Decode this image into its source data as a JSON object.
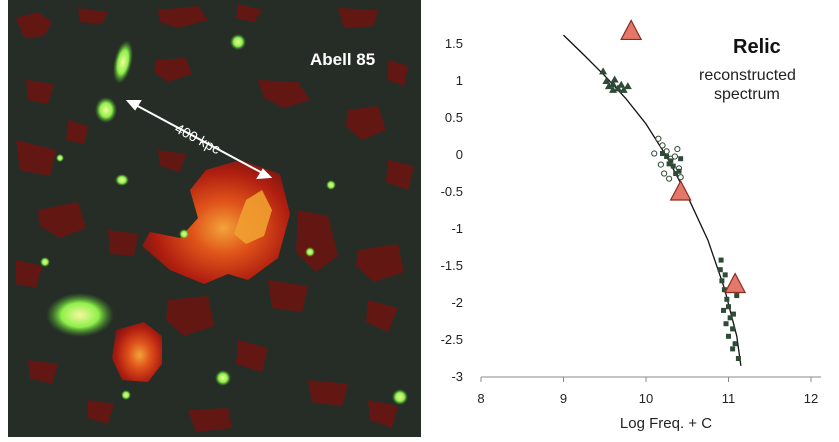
{
  "image_panel": {
    "title": "Abell 85",
    "scale_label": "400 kpc"
  },
  "legend": {
    "title": "Relic",
    "subtitle_line1": "reconstructed",
    "subtitle_line2": "spectrum"
  },
  "colors": {
    "background_dark": "#262d26",
    "radio_dark": "#7a1612",
    "radio_bright": "#d13412",
    "radio_core": "#f0a030",
    "xray_green": "#6ee84a",
    "xray_core": "#e8f070",
    "triangle_fill": "#e3776a",
    "triangle_stroke": "#8a2b20",
    "marker_dark": "#2f4a37"
  },
  "chart_data": {
    "type": "scatter",
    "title": "",
    "xlabel": "Log Freq. + C",
    "ylabel": "",
    "xlim": [
      8,
      12
    ],
    "ylim": [
      -3,
      1.5
    ],
    "x_ticks": [
      "8",
      "9",
      "10",
      "11",
      "12"
    ],
    "y_ticks": [
      "1.5",
      "1",
      "0.5",
      "0",
      "-0.5",
      "-1",
      "-1.5",
      "-2",
      "-2.5",
      "-3"
    ],
    "series": [
      {
        "marker": "triangle-small",
        "points": [
          [
            9.48,
            1.13
          ],
          [
            9.52,
            1.0
          ],
          [
            9.55,
            0.93
          ],
          [
            9.6,
            0.96
          ],
          [
            9.62,
            1.02
          ],
          [
            9.66,
            0.9
          ],
          [
            9.7,
            0.95
          ],
          [
            9.73,
            0.88
          ],
          [
            9.78,
            0.93
          ],
          [
            9.6,
            0.88
          ]
        ]
      },
      {
        "marker": "circle-open",
        "points": [
          [
            10.15,
            0.22
          ],
          [
            10.2,
            0.13
          ],
          [
            10.1,
            0.02
          ],
          [
            10.25,
            0.05
          ],
          [
            10.3,
            -0.05
          ],
          [
            10.18,
            -0.13
          ],
          [
            10.35,
            -0.02
          ],
          [
            10.4,
            -0.18
          ],
          [
            10.42,
            -0.3
          ],
          [
            10.28,
            -0.32
          ],
          [
            10.38,
            0.08
          ],
          [
            10.22,
            -0.25
          ]
        ]
      },
      {
        "marker": "square-small",
        "points": [
          [
            10.2,
            0.02
          ],
          [
            10.25,
            -0.02
          ],
          [
            10.3,
            -0.08
          ],
          [
            10.28,
            -0.12
          ],
          [
            10.33,
            -0.15
          ],
          [
            10.4,
            -0.22
          ],
          [
            10.36,
            -0.25
          ],
          [
            10.42,
            -0.05
          ],
          [
            10.9,
            -1.55
          ],
          [
            10.92,
            -1.7
          ],
          [
            10.95,
            -1.82
          ],
          [
            10.98,
            -1.95
          ],
          [
            11.0,
            -2.05
          ],
          [
            10.94,
            -2.1
          ],
          [
            11.02,
            -2.2
          ],
          [
            10.97,
            -2.28
          ],
          [
            11.05,
            -2.35
          ],
          [
            11.0,
            -2.45
          ],
          [
            11.08,
            -2.55
          ],
          [
            11.05,
            -2.62
          ],
          [
            11.1,
            -1.9
          ],
          [
            10.96,
            -1.62
          ],
          [
            11.12,
            -2.75
          ],
          [
            11.06,
            -2.15
          ],
          [
            10.91,
            -1.42
          ]
        ]
      },
      {
        "marker": "triangle-large",
        "points": [
          [
            9.82,
            1.67
          ],
          [
            10.42,
            -0.5
          ],
          [
            11.08,
            -1.75
          ]
        ]
      }
    ],
    "fit_curve": [
      [
        9.0,
        1.62
      ],
      [
        9.25,
        1.35
      ],
      [
        9.5,
        1.07
      ],
      [
        9.75,
        0.77
      ],
      [
        10.0,
        0.42
      ],
      [
        10.25,
        -0.02
      ],
      [
        10.5,
        -0.55
      ],
      [
        10.75,
        -1.15
      ],
      [
        10.95,
        -1.8
      ],
      [
        11.1,
        -2.45
      ],
      [
        11.15,
        -2.85
      ]
    ]
  }
}
